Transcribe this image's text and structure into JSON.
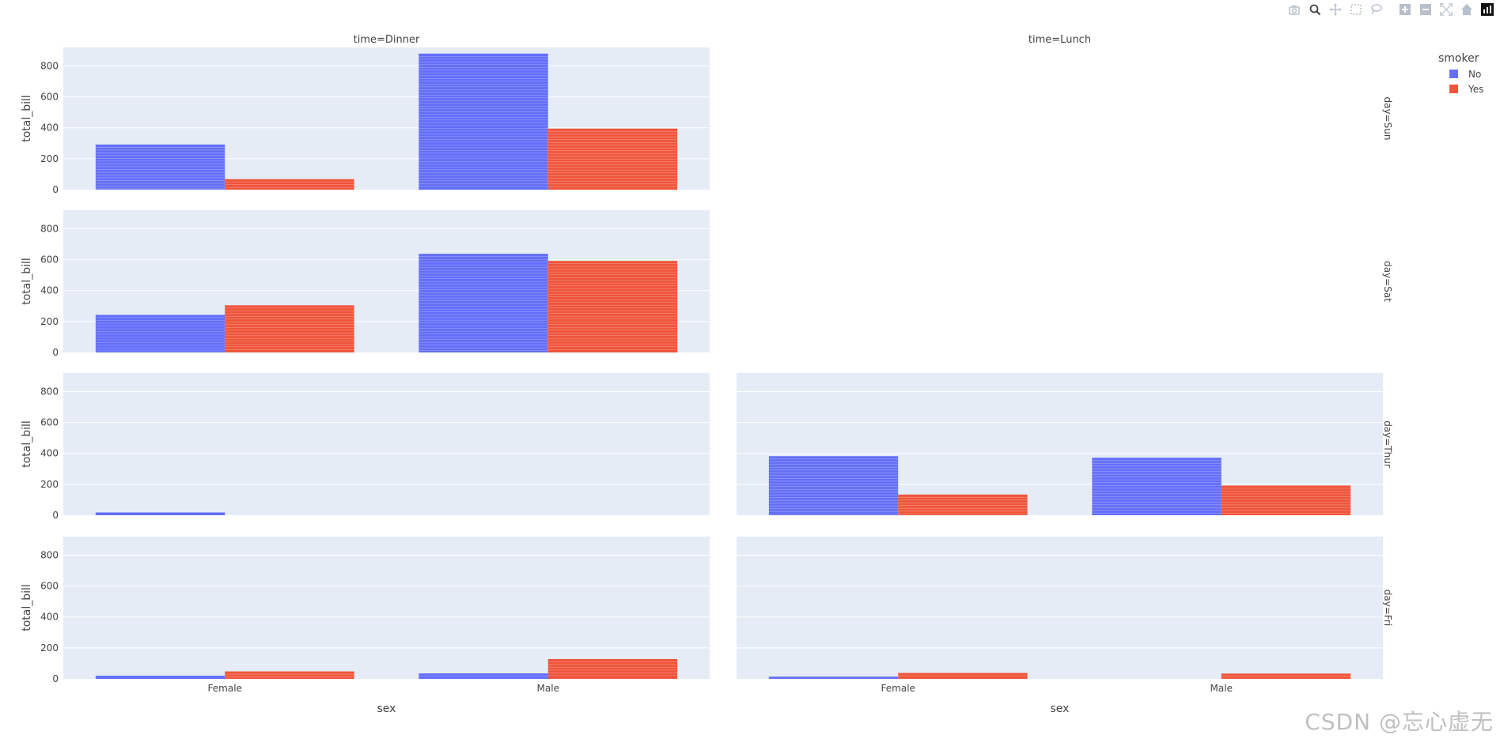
{
  "colors": {
    "no": "#636efa",
    "yes": "#ef553b",
    "panel_bg": "#e5ecf6",
    "grid": "#ffffff",
    "text": "#444444",
    "modebar_icon": "#b8c0cc",
    "modebar_active": "#444444"
  },
  "modebar": {
    "icons": [
      "camera-icon",
      "zoom-icon",
      "pan-icon",
      "box-select-icon",
      "lasso-icon",
      "zoom-in-icon",
      "zoom-out-icon",
      "autoscale-icon",
      "reset-axes-icon",
      "plotly-logo-icon"
    ]
  },
  "watermark": "CSDN @忘心虚无",
  "chart_data": {
    "type": "bar",
    "barmode": "group",
    "facet_col_label": "time",
    "facet_row_label": "day",
    "columns": [
      "time=Dinner",
      "time=Lunch"
    ],
    "rows": [
      "day=Sun",
      "day=Sat",
      "day=Thur",
      "day=Fri"
    ],
    "categories": [
      "Female",
      "Male"
    ],
    "xlabel": "sex",
    "ylabel": "total_bill",
    "ylim": [
      0,
      920
    ],
    "yticks": [
      "0",
      "200",
      "400",
      "600",
      "800"
    ],
    "ytick_values": [
      0,
      200,
      400,
      600,
      800
    ],
    "legend": {
      "title": "smoker",
      "entries": [
        "No",
        "Yes"
      ],
      "position": "top-right"
    },
    "panels": [
      {
        "row": 0,
        "col": 0,
        "visible": true,
        "no": [
          292,
          880
        ],
        "yes": [
          68,
          395
        ]
      },
      {
        "row": 0,
        "col": 1,
        "visible": false,
        "no": [
          0,
          0
        ],
        "yes": [
          0,
          0
        ]
      },
      {
        "row": 1,
        "col": 0,
        "visible": true,
        "no": [
          243,
          638
        ],
        "yes": [
          305,
          592
        ]
      },
      {
        "row": 1,
        "col": 1,
        "visible": false,
        "no": [
          0,
          0
        ],
        "yes": [
          0,
          0
        ]
      },
      {
        "row": 2,
        "col": 0,
        "visible": true,
        "no": [
          18,
          0
        ],
        "yes": [
          0,
          0
        ]
      },
      {
        "row": 2,
        "col": 1,
        "visible": true,
        "no": [
          382,
          372
        ],
        "yes": [
          134,
          192
        ]
      },
      {
        "row": 3,
        "col": 0,
        "visible": true,
        "no": [
          20,
          35
        ],
        "yes": [
          48,
          128
        ]
      },
      {
        "row": 3,
        "col": 1,
        "visible": true,
        "no": [
          14,
          0
        ],
        "yes": [
          38,
          34
        ]
      }
    ]
  }
}
